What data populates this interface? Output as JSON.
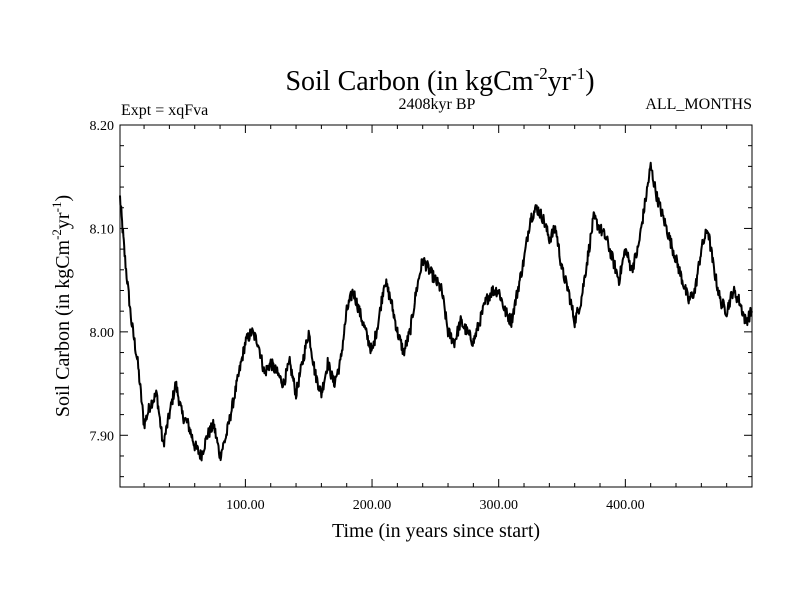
{
  "chart_data": {
    "type": "line",
    "title_main": "Soil Carbon (in kgCm",
    "title_sup1": "-2",
    "title_mid": "yr",
    "title_sup2": "-1",
    "title_end": ")",
    "subtitle_left": "Expt = xqFva",
    "subtitle_center": "2408kyr BP",
    "subtitle_right": "ALL_MONTHS",
    "xlabel": "Time (in years since start)",
    "ylabel_main": "Soil Carbon (in kgCm",
    "ylabel_sup1": "-2",
    "ylabel_mid": "yr",
    "ylabel_sup2": "-1",
    "ylabel_end": ")",
    "xlim": [
      1,
      500
    ],
    "ylim": [
      7.85,
      8.2
    ],
    "xticks": [
      100,
      200,
      300,
      400
    ],
    "xtick_labels": [
      "100.00",
      "200.00",
      "300.00",
      "400.00"
    ],
    "yticks": [
      7.9,
      8.0,
      8.1,
      8.2
    ],
    "ytick_labels": [
      "7.90",
      "8.00",
      "8.10",
      "8.20"
    ],
    "series": [
      {
        "name": "Soil Carbon",
        "color": "#000000",
        "x": [
          1,
          5,
          10,
          15,
          20,
          25,
          30,
          35,
          40,
          45,
          50,
          55,
          60,
          65,
          70,
          75,
          80,
          85,
          90,
          95,
          100,
          105,
          110,
          115,
          120,
          125,
          130,
          135,
          140,
          145,
          150,
          155,
          160,
          165,
          170,
          175,
          180,
          185,
          190,
          195,
          200,
          205,
          210,
          215,
          220,
          225,
          230,
          235,
          240,
          245,
          250,
          255,
          260,
          265,
          270,
          275,
          280,
          285,
          290,
          295,
          300,
          305,
          310,
          315,
          320,
          325,
          330,
          335,
          340,
          345,
          350,
          355,
          360,
          365,
          370,
          375,
          380,
          385,
          390,
          395,
          400,
          405,
          410,
          415,
          420,
          425,
          430,
          435,
          440,
          445,
          450,
          455,
          460,
          465,
          470,
          475,
          480,
          485,
          490,
          495,
          500
        ],
        "values": [
          8.13,
          8.07,
          8.01,
          7.97,
          7.91,
          7.93,
          7.94,
          7.89,
          7.92,
          7.95,
          7.92,
          7.91,
          7.89,
          7.88,
          7.9,
          7.91,
          7.88,
          7.9,
          7.93,
          7.96,
          7.99,
          8.0,
          7.99,
          7.96,
          7.97,
          7.96,
          7.95,
          7.97,
          7.94,
          7.97,
          8.0,
          7.96,
          7.94,
          7.97,
          7.95,
          7.97,
          8.02,
          8.04,
          8.02,
          8.0,
          7.98,
          8.01,
          8.05,
          8.03,
          8.0,
          7.98,
          8.0,
          8.04,
          8.07,
          8.06,
          8.05,
          8.04,
          8.0,
          7.99,
          8.01,
          8.0,
          7.99,
          8.01,
          8.03,
          8.04,
          8.04,
          8.02,
          8.01,
          8.04,
          8.07,
          8.11,
          8.12,
          8.11,
          8.09,
          8.1,
          8.06,
          8.04,
          8.01,
          8.03,
          8.07,
          8.11,
          8.1,
          8.09,
          8.07,
          8.05,
          8.08,
          8.06,
          8.08,
          8.12,
          8.16,
          8.13,
          8.11,
          8.09,
          8.07,
          8.05,
          8.03,
          8.04,
          8.08,
          8.1,
          8.06,
          8.03,
          8.02,
          8.04,
          8.03,
          8.01,
          8.02
        ]
      }
    ]
  }
}
